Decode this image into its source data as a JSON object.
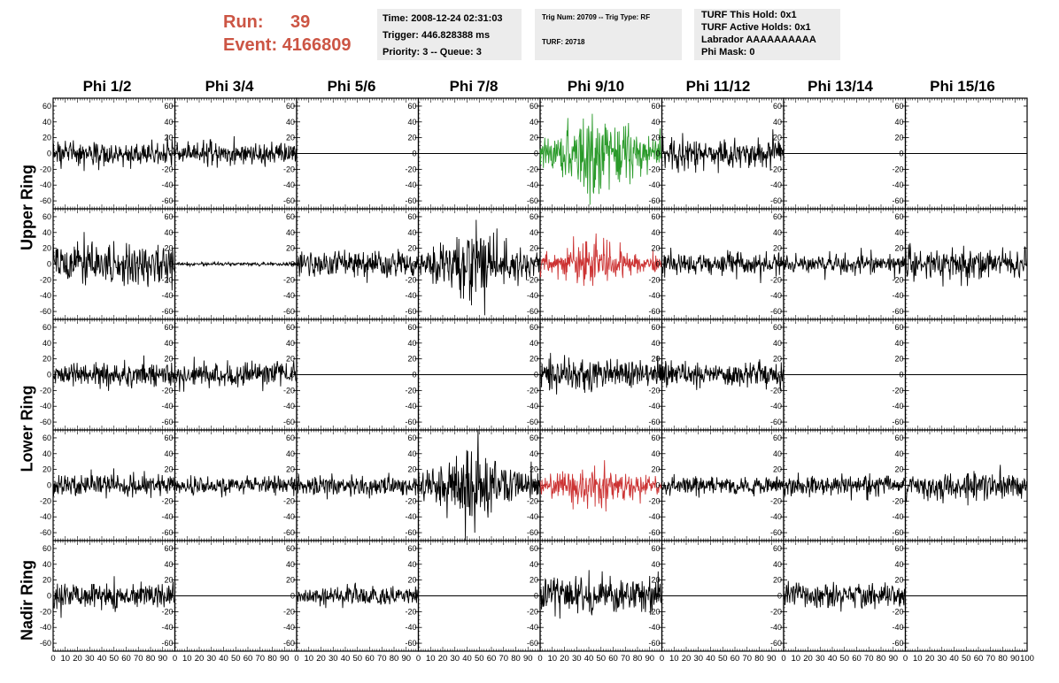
{
  "run": {
    "label": "Run:",
    "value": "39"
  },
  "event": {
    "label": "Event:",
    "value": "4166809"
  },
  "info1": [
    "Time: 2008-12-24 02:31:03",
    "Trigger: 446.828388 ms",
    "Priority: 3 -- Queue: 3"
  ],
  "info2": [
    "Trig Num: 20709 -- Trig Type: RF",
    "TURF: 20718"
  ],
  "info3": [
    "TURF This Hold: 0x1",
    "TURF Active Holds: 0x1",
    "Labrador AAAAAAAAAA",
    "Phi Mask: 0"
  ],
  "columns": [
    "Phi 1/2",
    "Phi 3/4",
    "Phi 5/6",
    "Phi 7/8",
    "Phi 9/10",
    "Phi 11/12",
    "Phi 13/14",
    "Phi 15/16"
  ],
  "ring_labels": [
    "Upper Ring",
    "Lower Ring",
    "Nadir Ring"
  ],
  "colors": {
    "header": "#cc5544",
    "trace": "#000000",
    "trigger_green": "#2a9a2a",
    "trigger_red": "#cc3333",
    "info_bg": "#ececec"
  },
  "chart_data": {
    "type": "line",
    "x_ticks": [
      "0",
      "10",
      "20",
      "30",
      "40",
      "50",
      "60",
      "70",
      "80",
      "90",
      "100"
    ],
    "y_ticks": [
      "60",
      "40",
      "20",
      "0",
      "-20",
      "-40",
      "-60"
    ],
    "xlim": [
      0,
      100
    ],
    "ylim": [
      -70,
      70
    ],
    "rows": 5,
    "cols": 8,
    "amplitudes": [
      [
        15,
        13,
        0,
        0,
        38,
        17,
        0,
        0
      ],
      [
        22,
        2,
        15,
        30,
        20,
        13,
        11,
        18
      ],
      [
        14,
        14,
        0,
        0,
        17,
        15,
        0,
        0
      ],
      [
        14,
        10,
        12,
        34,
        22,
        10,
        12,
        16
      ],
      [
        16,
        0,
        10,
        0,
        21,
        0,
        14,
        0
      ]
    ],
    "trace_colors": [
      [
        "black",
        "black",
        "black",
        "black",
        "green",
        "black",
        "black",
        "black"
      ],
      [
        "black",
        "black",
        "black",
        "black",
        "red",
        "black",
        "black",
        "black"
      ],
      [
        "black",
        "black",
        "black",
        "black",
        "black",
        "black",
        "black",
        "black"
      ],
      [
        "black",
        "black",
        "black",
        "black",
        "red",
        "black",
        "black",
        "black"
      ],
      [
        "black",
        "black",
        "black",
        "black",
        "black",
        "black",
        "black",
        "black"
      ]
    ]
  }
}
